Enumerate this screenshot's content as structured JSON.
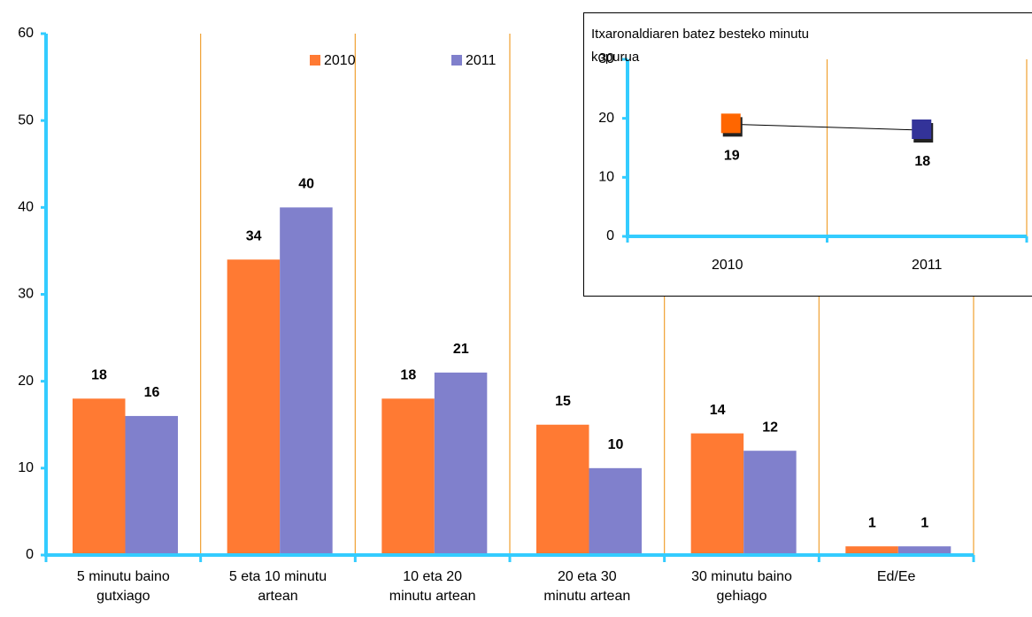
{
  "chart_data": [
    {
      "type": "bar",
      "categories": [
        "5 minutu baino\ngutxiago",
        "5  eta 10 minutu\nartean",
        "10 eta 20\nminutu artean",
        "20 eta 30\nminutu artean",
        "30 minutu baino\ngehiago",
        "Ed/Ee"
      ],
      "series": [
        {
          "name": "2010",
          "color": "#ff7a33",
          "values": [
            18,
            34,
            18,
            15,
            14,
            1
          ]
        },
        {
          "name": "2011",
          "color": "#8080cc",
          "values": [
            16,
            40,
            21,
            10,
            12,
            1
          ]
        }
      ],
      "ylim": [
        0,
        60
      ],
      "yticks": [
        0,
        10,
        20,
        30,
        40,
        50,
        60
      ],
      "grid": true
    },
    {
      "type": "line",
      "title": "Itxaronaldiaren batez besteko minutu\nkopurua",
      "categories": [
        "2010",
        "2011"
      ],
      "values": [
        19,
        18
      ],
      "colors": [
        "#ff6600",
        "#333399"
      ],
      "ylim": [
        0,
        30
      ],
      "yticks": [
        0,
        10,
        20,
        30
      ],
      "grid": true
    }
  ]
}
